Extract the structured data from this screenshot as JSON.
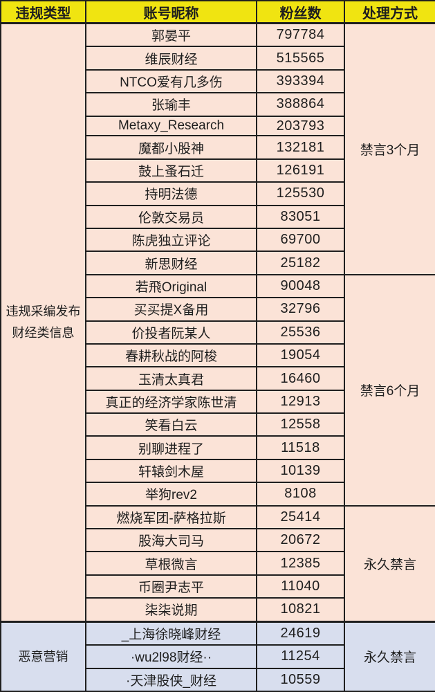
{
  "colors": {
    "header_background": "#f0e411",
    "section1_background": "#fbe3d7",
    "section2_background": "#d8deee",
    "border": "#1f1f1f",
    "text": "#1e1e1e"
  },
  "table": {
    "headers": [
      "违规类型",
      "账号昵称",
      "粉丝数",
      "处理方式"
    ],
    "sections": [
      {
        "violation_type": "违规采编发布财经类信息",
        "groups": [
          {
            "punishment": "禁言3个月",
            "rows": [
              [
                "郭晏平",
                "797784"
              ],
              [
                "维辰财经",
                "515565"
              ],
              [
                "NTCO爱有几多伤",
                "393394"
              ],
              [
                "张瑜丰",
                "388864"
              ],
              [
                "Metaxy_Research",
                "203793"
              ],
              [
                "魔都小股神",
                "132181"
              ],
              [
                "鼓上蚤石迁",
                "126191"
              ],
              [
                "持明法德",
                "125530"
              ],
              [
                "伦敦交易员",
                "83051"
              ],
              [
                "陈虎独立评论",
                "69700"
              ],
              [
                "新思财经",
                "25182"
              ]
            ]
          },
          {
            "punishment": "禁言6个月",
            "rows": [
              [
                "若飛Original",
                "90048"
              ],
              [
                "买买提X备用",
                "32796"
              ],
              [
                "价投者阮某人",
                "25536"
              ],
              [
                "春耕秋战的阿梭",
                "19054"
              ],
              [
                "玉清太真君",
                "16460"
              ],
              [
                "真正的经济学家陈世清",
                "12913"
              ],
              [
                "笑看白云",
                "12558"
              ],
              [
                "别聊进程了",
                "11518"
              ],
              [
                "轩辕剑木屋",
                "10139"
              ],
              [
                "举狗rev2",
                "8108"
              ]
            ]
          },
          {
            "punishment": "永久禁言",
            "rows": [
              [
                "燃烧军团-萨格拉斯",
                "25414"
              ],
              [
                "股海大司马",
                "20672"
              ],
              [
                "草根微言",
                "12385"
              ],
              [
                "币圈尹志平",
                "11040"
              ],
              [
                "柒柒说期",
                "10821"
              ]
            ]
          }
        ]
      },
      {
        "violation_type": "恶意营销",
        "groups": [
          {
            "punishment": "永久禁言",
            "rows": [
              [
                "_上海徐晓峰财经",
                "24619"
              ],
              [
                "·wu2l98财经··",
                "11254"
              ],
              [
                "·天津股侠_财经",
                "10559"
              ]
            ]
          }
        ]
      }
    ]
  },
  "chart_data": {
    "type": "table",
    "columns": [
      "违规类型",
      "账号昵称",
      "粉丝数",
      "处理方式"
    ],
    "rows": [
      [
        "违规采编发布财经类信息",
        "郭晏平",
        797784,
        "禁言3个月"
      ],
      [
        "违规采编发布财经类信息",
        "维辰财经",
        515565,
        "禁言3个月"
      ],
      [
        "违规采编发布财经类信息",
        "NTCO爱有几多伤",
        393394,
        "禁言3个月"
      ],
      [
        "违规采编发布财经类信息",
        "张瑜丰",
        388864,
        "禁言3个月"
      ],
      [
        "违规采编发布财经类信息",
        "Metaxy_Research",
        203793,
        "禁言3个月"
      ],
      [
        "违规采编发布财经类信息",
        "魔都小股神",
        132181,
        "禁言3个月"
      ],
      [
        "违规采编发布财经类信息",
        "鼓上蚤石迁",
        126191,
        "禁言3个月"
      ],
      [
        "违规采编发布财经类信息",
        "持明法德",
        125530,
        "禁言3个月"
      ],
      [
        "违规采编发布财经类信息",
        "伦敦交易员",
        83051,
        "禁言3个月"
      ],
      [
        "违规采编发布财经类信息",
        "陈虎独立评论",
        69700,
        "禁言3个月"
      ],
      [
        "违规采编发布财经类信息",
        "新思财经",
        25182,
        "禁言3个月"
      ],
      [
        "违规采编发布财经类信息",
        "若飛Original",
        90048,
        "禁言6个月"
      ],
      [
        "违规采编发布财经类信息",
        "买买提X备用",
        32796,
        "禁言6个月"
      ],
      [
        "违规采编发布财经类信息",
        "价投者阮某人",
        25536,
        "禁言6个月"
      ],
      [
        "违规采编发布财经类信息",
        "春耕秋战的阿梭",
        19054,
        "禁言6个月"
      ],
      [
        "违规采编发布财经类信息",
        "玉清太真君",
        16460,
        "禁言6个月"
      ],
      [
        "违规采编发布财经类信息",
        "真正的经济学家陈世清",
        12913,
        "禁言6个月"
      ],
      [
        "违规采编发布财经类信息",
        "笑看白云",
        12558,
        "禁言6个月"
      ],
      [
        "违规采编发布财经类信息",
        "别聊进程了",
        11518,
        "禁言6个月"
      ],
      [
        "违规采编发布财经类信息",
        "轩辕剑木屋",
        10139,
        "禁言6个月"
      ],
      [
        "违规采编发布财经类信息",
        "举狗rev2",
        8108,
        "禁言6个月"
      ],
      [
        "违规采编发布财经类信息",
        "燃烧军团-萨格拉斯",
        25414,
        "永久禁言"
      ],
      [
        "违规采编发布财经类信息",
        "股海大司马",
        20672,
        "永久禁言"
      ],
      [
        "违规采编发布财经类信息",
        "草根微言",
        12385,
        "永久禁言"
      ],
      [
        "违规采编发布财经类信息",
        "币圈尹志平",
        11040,
        "永久禁言"
      ],
      [
        "违规采编发布财经类信息",
        "柒柒说期",
        10821,
        "永久禁言"
      ],
      [
        "恶意营销",
        "_上海徐晓峰财经",
        24619,
        "永久禁言"
      ],
      [
        "恶意营销",
        "·wu2l98财经··",
        11254,
        "永久禁言"
      ],
      [
        "恶意营销",
        "·天津股侠_财经",
        10559,
        "永久禁言"
      ]
    ]
  }
}
